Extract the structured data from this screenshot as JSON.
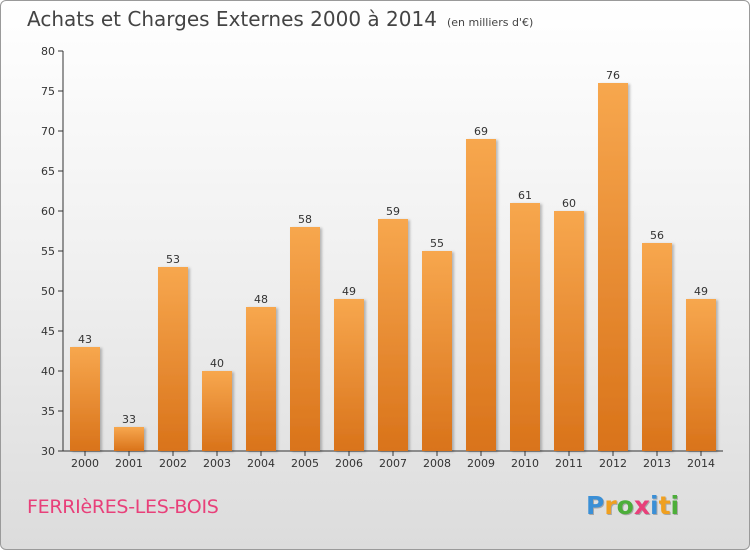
{
  "title": "Achats et Charges Externes 2000 à 2014",
  "subtitle": "(en milliers d'€)",
  "place": "FERRIèRES-LES-BOIS",
  "logo": {
    "text": "Proxiti",
    "letters": [
      {
        "ch": "P",
        "color": "#3a8fd6"
      },
      {
        "ch": "r",
        "color": "#f0a020"
      },
      {
        "ch": "o",
        "color": "#4cae3a"
      },
      {
        "ch": "x",
        "color": "#e8407a"
      },
      {
        "ch": "i",
        "color": "#3a8fd6"
      },
      {
        "ch": "t",
        "color": "#f0a020"
      },
      {
        "ch": "i",
        "color": "#4cae3a"
      }
    ]
  },
  "colors": {
    "bar_top": "#f7a74e",
    "bar_bottom": "#d9731a",
    "axis": "#333333",
    "grid": "#bbbbbb"
  },
  "chart_data": {
    "type": "bar",
    "title": "Achats et Charges Externes 2000 à 2014",
    "categories": [
      "2000",
      "2001",
      "2002",
      "2003",
      "2004",
      "2005",
      "2006",
      "2007",
      "2008",
      "2009",
      "2010",
      "2011",
      "2012",
      "2013",
      "2014"
    ],
    "values": [
      43,
      33,
      53,
      40,
      48,
      58,
      49,
      59,
      55,
      69,
      61,
      60,
      76,
      56,
      49
    ],
    "ylim": [
      30,
      80
    ],
    "yticks": [
      30,
      35,
      40,
      45,
      50,
      55,
      60,
      65,
      70,
      75,
      80
    ],
    "grid": false,
    "data_labels": true
  }
}
